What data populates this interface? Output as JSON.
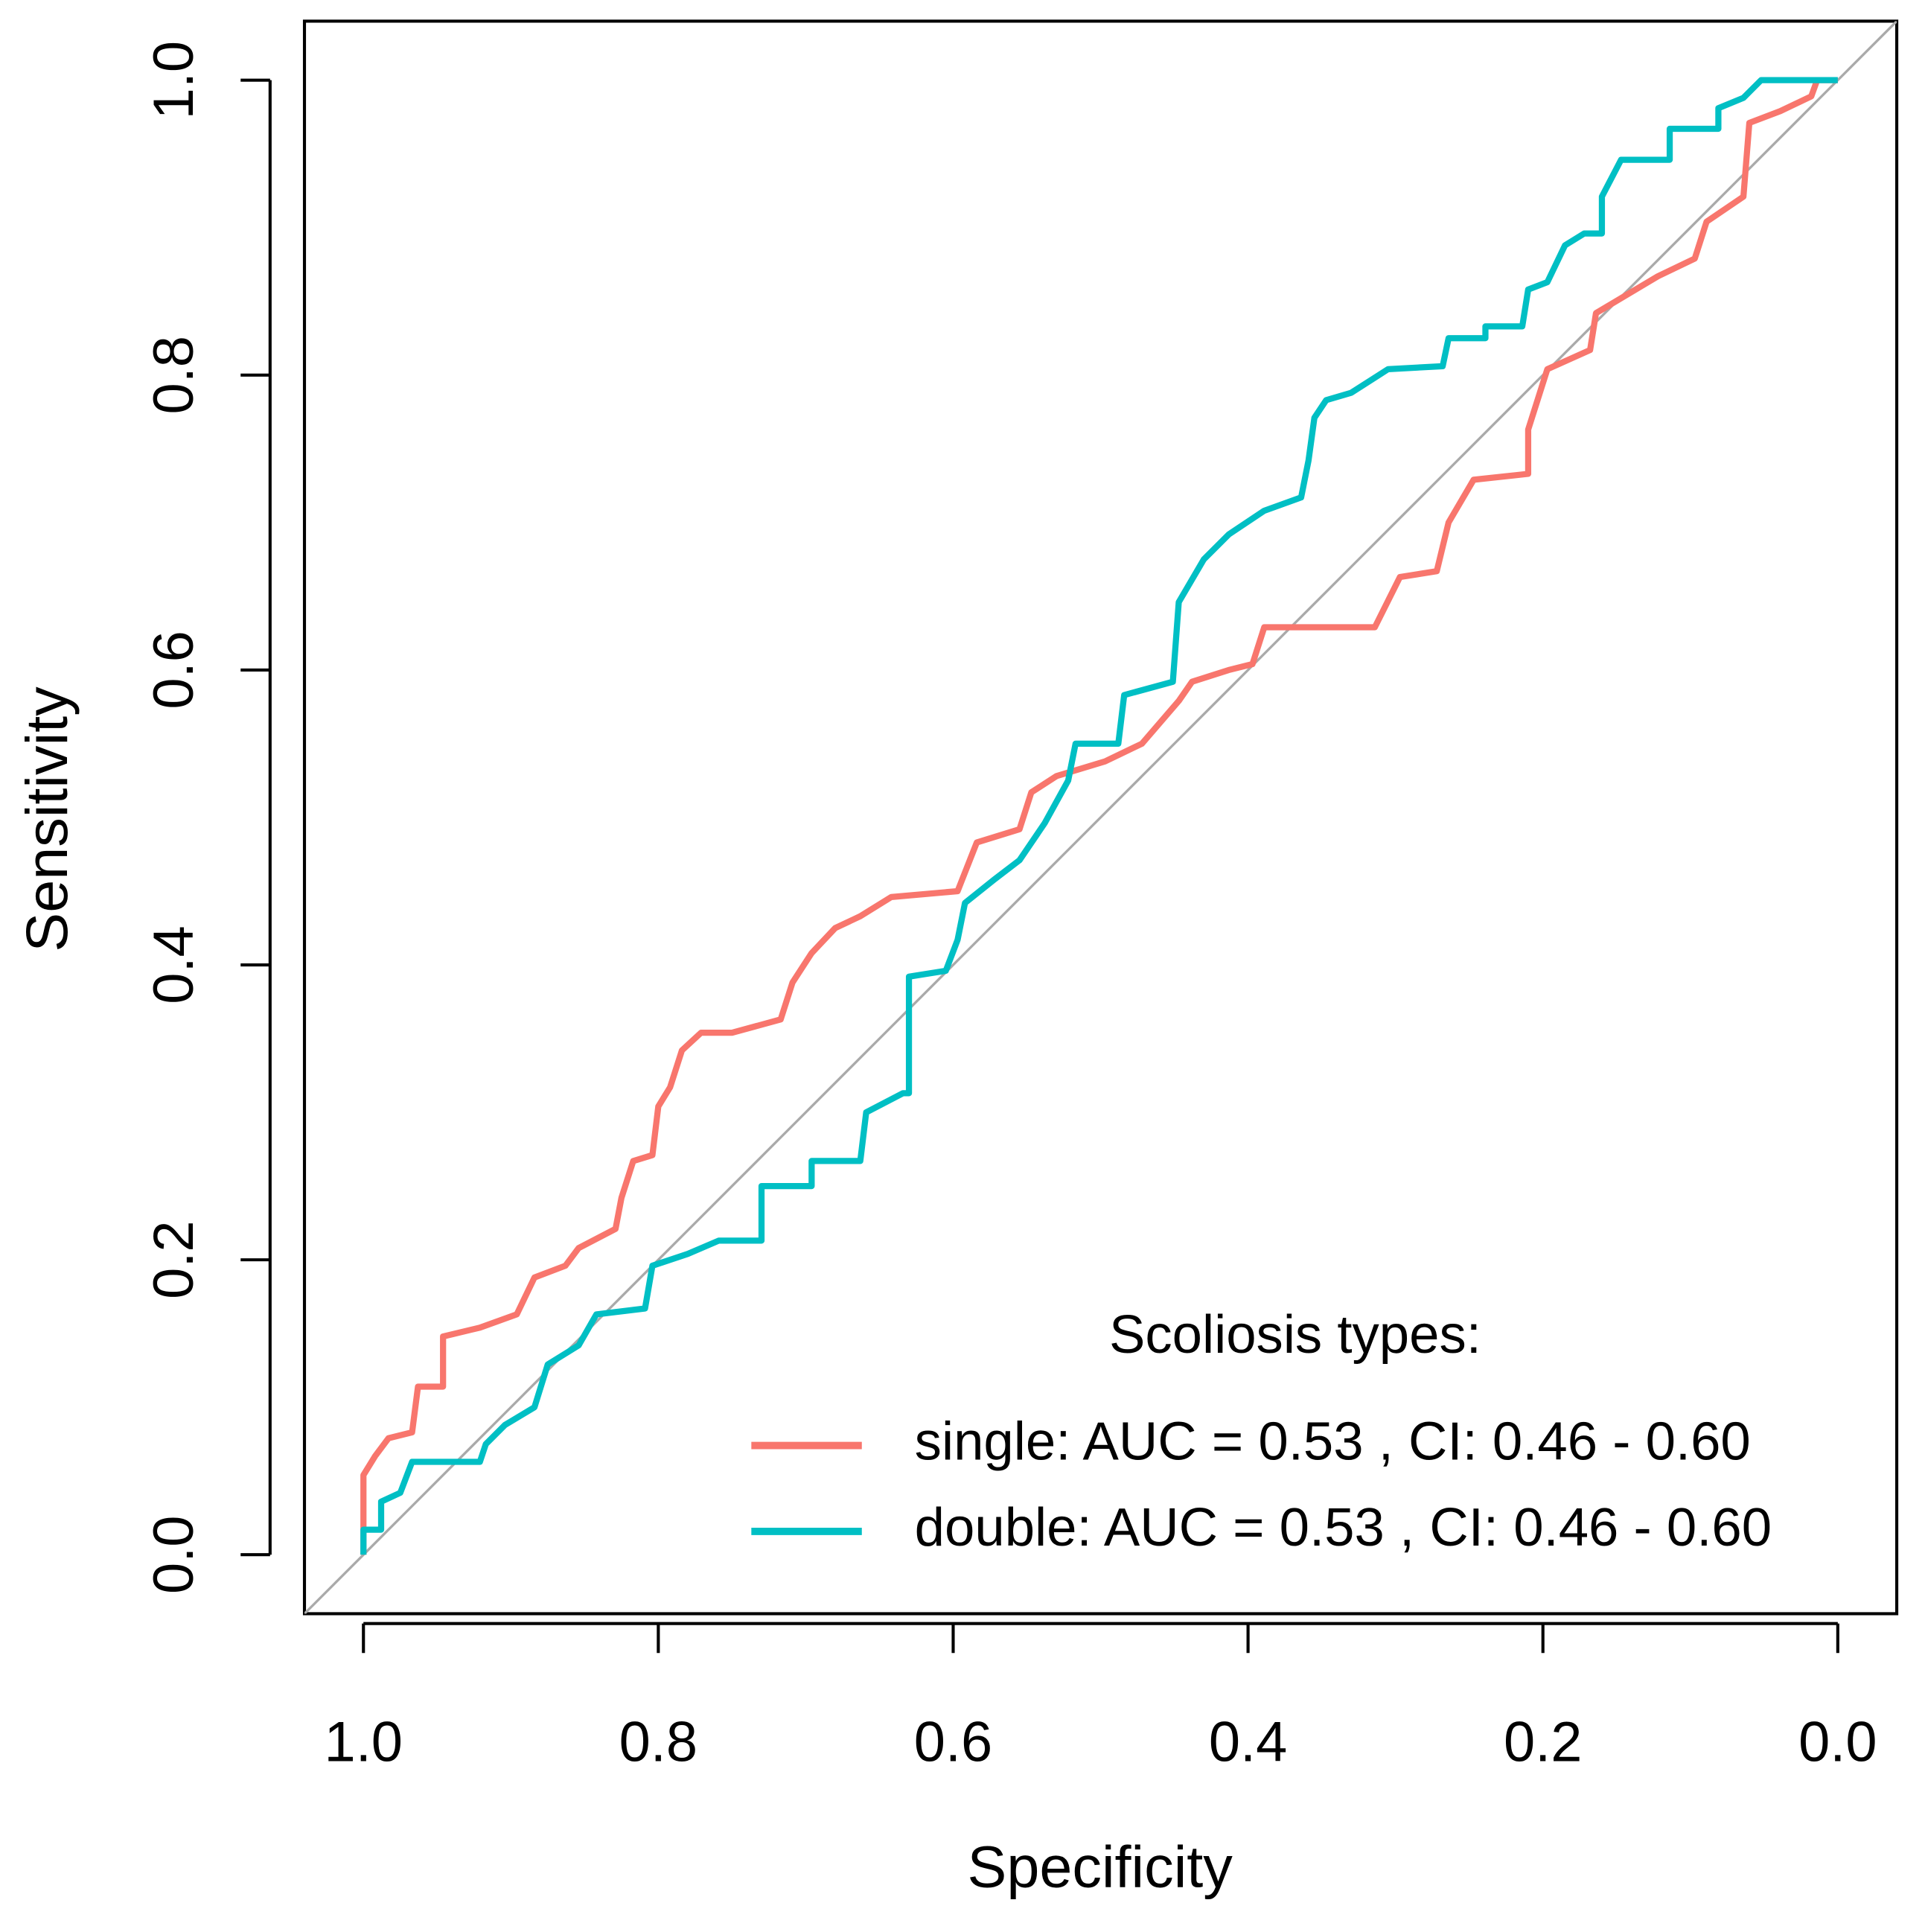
{
  "chart_data": {
    "type": "line",
    "x_label": "Specificity",
    "y_label": "Sensitivity",
    "xlim": [
      1.04,
      -0.04
    ],
    "ylim": [
      -0.04,
      1.04
    ],
    "xticks": [
      {
        "value": 1,
        "label": "1.0"
      },
      0.8,
      0.6,
      0.4,
      0.2,
      {
        "value": 0,
        "label": "0.0"
      }
    ],
    "yticks": [
      {
        "value": 0,
        "label": "0.0"
      },
      0.2,
      0.4,
      0.6,
      0.8,
      {
        "value": 1,
        "label": "1.0"
      }
    ],
    "legend_title": "Scoliosis types:",
    "legend_position": "bottomright",
    "series": [
      {
        "name": "single: AUC = 0.53 , CI: 0.46 - 0.60",
        "color": "#f8766d",
        "x": [
          1.0,
          1.0,
          0.992,
          0.983,
          0.967,
          0.963,
          0.946,
          0.946,
          0.921,
          0.896,
          0.884,
          0.863,
          0.854,
          0.829,
          0.825,
          0.817,
          0.804,
          0.8,
          0.792,
          0.784,
          0.771,
          0.75,
          0.717,
          0.709,
          0.696,
          0.68,
          0.663,
          0.642,
          0.597,
          0.584,
          0.555,
          0.547,
          0.53,
          0.497,
          0.472,
          0.447,
          0.438,
          0.413,
          0.397,
          0.389,
          0.314,
          0.297,
          0.272,
          0.264,
          0.247,
          0.21,
          0.21,
          0.197,
          0.168,
          0.164,
          0.122,
          0.097,
          0.089,
          0.064,
          0.06,
          0.039,
          0.018,
          0.014,
          0.0
        ],
        "values": [
          0,
          0.054,
          0.067,
          0.079,
          0.083,
          0.114,
          0.114,
          0.148,
          0.154,
          0.163,
          0.188,
          0.196,
          0.208,
          0.221,
          0.242,
          0.267,
          0.271,
          0.304,
          0.317,
          0.342,
          0.354,
          0.354,
          0.363,
          0.388,
          0.408,
          0.425,
          0.433,
          0.446,
          0.45,
          0.483,
          0.492,
          0.517,
          0.528,
          0.538,
          0.55,
          0.579,
          0.592,
          0.6,
          0.604,
          0.629,
          0.629,
          0.663,
          0.667,
          0.7,
          0.729,
          0.733,
          0.763,
          0.804,
          0.817,
          0.842,
          0.867,
          0.879,
          0.904,
          0.921,
          0.971,
          0.979,
          0.989,
          1.0,
          1.0
        ]
      },
      {
        "name": "double: AUC = 0.53 , CI: 0.46 - 0.60",
        "color": "#00bfc4",
        "x": [
          1.0,
          1.0,
          0.988,
          0.988,
          0.975,
          0.967,
          0.921,
          0.917,
          0.904,
          0.884,
          0.875,
          0.854,
          0.842,
          0.809,
          0.804,
          0.78,
          0.759,
          0.73,
          0.73,
          0.696,
          0.696,
          0.663,
          0.659,
          0.634,
          0.63,
          0.63,
          0.605,
          0.597,
          0.592,
          0.572,
          0.555,
          0.538,
          0.522,
          0.517,
          0.488,
          0.484,
          0.451,
          0.447,
          0.43,
          0.413,
          0.389,
          0.364,
          0.359,
          0.355,
          0.347,
          0.33,
          0.305,
          0.268,
          0.264,
          0.239,
          0.239,
          0.214,
          0.21,
          0.197,
          0.185,
          0.172,
          0.16,
          0.16,
          0.147,
          0.114,
          0.114,
          0.081,
          0.081,
          0.064,
          0.052,
          0.0
        ],
        "values": [
          0,
          0.017,
          0.017,
          0.036,
          0.042,
          0.063,
          0.063,
          0.075,
          0.088,
          0.1,
          0.129,
          0.142,
          0.163,
          0.167,
          0.196,
          0.204,
          0.213,
          0.213,
          0.25,
          0.25,
          0.267,
          0.267,
          0.3,
          0.313,
          0.313,
          0.392,
          0.396,
          0.417,
          0.442,
          0.458,
          0.471,
          0.496,
          0.525,
          0.55,
          0.55,
          0.583,
          0.592,
          0.646,
          0.675,
          0.692,
          0.708,
          0.717,
          0.742,
          0.771,
          0.783,
          0.788,
          0.804,
          0.806,
          0.825,
          0.825,
          0.833,
          0.833,
          0.858,
          0.863,
          0.888,
          0.896,
          0.896,
          0.921,
          0.946,
          0.946,
          0.967,
          0.967,
          0.981,
          0.988,
          1.0,
          1.0
        ]
      }
    ]
  }
}
